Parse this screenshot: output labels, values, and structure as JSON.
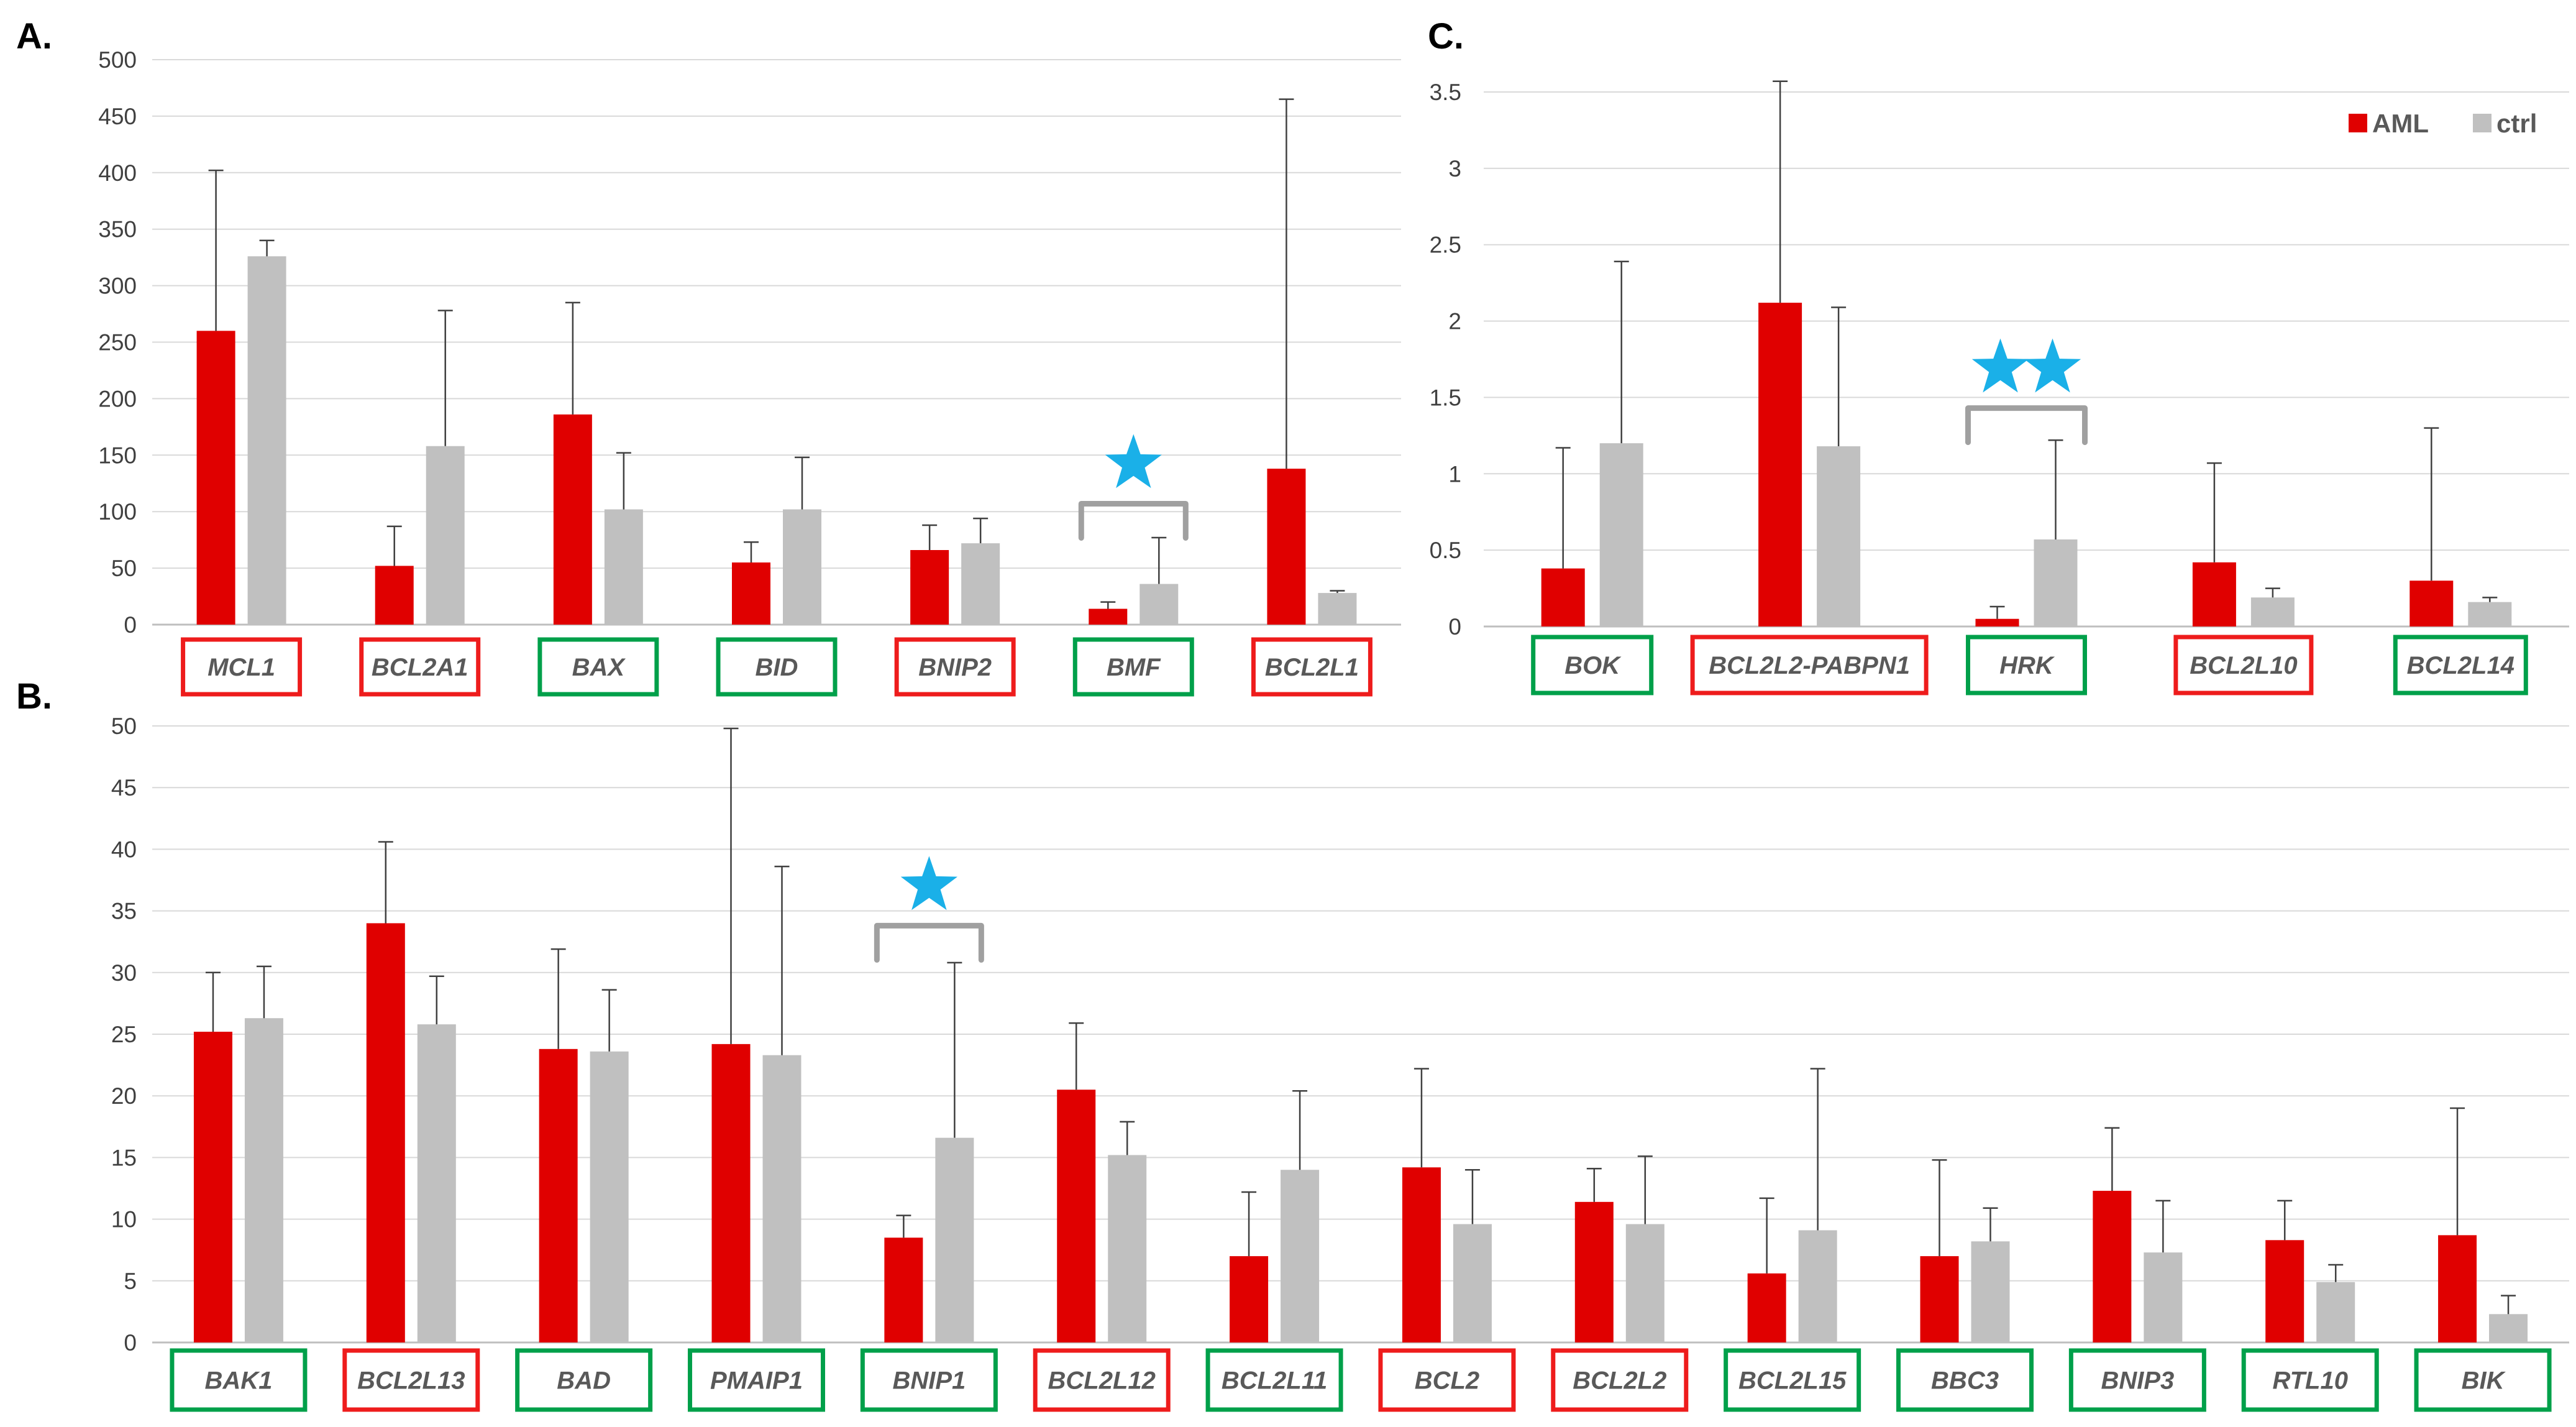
{
  "colors": {
    "aml": "#e00000",
    "ctrl": "#c0c0c0",
    "red_box": "#ee1c1c",
    "green_box": "#00a04a",
    "star": "#1ab0e8",
    "bracket": "#a0a0a0",
    "grid": "#d9d9d9",
    "error": "#404040"
  },
  "legend": [
    {
      "label": "AML",
      "color": "#e00000"
    },
    {
      "label": "ctrl",
      "color": "#c0c0c0"
    }
  ],
  "chart_data": [
    {
      "panel": "A.",
      "type": "bar",
      "ylim": [
        0,
        500
      ],
      "yticks": [
        "0",
        "50",
        "100",
        "150",
        "200",
        "250",
        "300",
        "350",
        "400",
        "450",
        "500"
      ],
      "categories": [
        "MCL1",
        "BCL2A1",
        "BAX",
        "BID",
        "BNIP2",
        "BMF",
        "BCL2L1"
      ],
      "box": [
        "red",
        "red",
        "green",
        "green",
        "red",
        "green",
        "red"
      ],
      "series": [
        {
          "name": "AML",
          "values": [
            260,
            52,
            186,
            55,
            66,
            14,
            138
          ],
          "err": [
            402,
            87,
            285,
            73,
            88,
            20,
            465
          ]
        },
        {
          "name": "ctrl",
          "values": [
            326,
            158,
            102,
            102,
            72,
            36,
            28
          ],
          "err": [
            340,
            278,
            152,
            148,
            94,
            77,
            30
          ]
        }
      ],
      "significance": [
        {
          "category": "BMF",
          "stars": "★"
        }
      ]
    },
    {
      "panel": "B.",
      "type": "bar",
      "ylim": [
        0,
        50
      ],
      "yticks": [
        "0",
        "5",
        "10",
        "15",
        "20",
        "25",
        "30",
        "35",
        "40",
        "45",
        "50"
      ],
      "categories": [
        "BAK1",
        "BCL2L13",
        "BAD",
        "PMAIP1",
        "BNIP1",
        "BCL2L12",
        "BCL2L11",
        "BCL2",
        "BCL2L2",
        "BCL2L15",
        "BBC3",
        "BNIP3",
        "RTL10",
        "BIK"
      ],
      "box": [
        "green",
        "red",
        "green",
        "green",
        "green",
        "red",
        "green",
        "red",
        "red",
        "green",
        "green",
        "green",
        "green",
        "green"
      ],
      "series": [
        {
          "name": "AML",
          "values": [
            25.2,
            34,
            23.8,
            24.2,
            8.5,
            20.5,
            7,
            14.2,
            11.4,
            5.6,
            7,
            12.3,
            8.3,
            8.7
          ],
          "err": [
            30,
            40.6,
            31.9,
            49.8,
            10.3,
            25.9,
            12.2,
            22.2,
            14.1,
            11.7,
            14.8,
            17.4,
            11.5,
            19
          ]
        },
        {
          "name": "ctrl",
          "values": [
            26.3,
            25.8,
            23.6,
            23.3,
            16.6,
            15.2,
            14,
            9.6,
            9.6,
            9.1,
            8.2,
            7.3,
            4.9,
            2.3
          ],
          "err": [
            30.5,
            29.7,
            28.6,
            38.6,
            30.8,
            17.9,
            20.4,
            14,
            15.1,
            22.2,
            10.9,
            11.5,
            6.3,
            3.8
          ]
        }
      ],
      "significance": [
        {
          "category": "BNIP1",
          "stars": "★"
        }
      ]
    },
    {
      "panel": "C.",
      "type": "bar",
      "ylim": [
        0,
        3.5
      ],
      "yticks": [
        "0",
        "0.5",
        "1",
        "1.5",
        "2",
        "2.5",
        "3",
        "3.5"
      ],
      "categories": [
        "BOK",
        "BCL2L2-PABPN1",
        "HRK",
        "BCL2L10",
        "BCL2L14"
      ],
      "box": [
        "green",
        "red",
        "green",
        "red",
        "green"
      ],
      "series": [
        {
          "name": "AML",
          "values": [
            0.38,
            2.12,
            0.05,
            0.42,
            0.3
          ],
          "err": [
            1.17,
            3.57,
            0.13,
            1.07,
            1.3
          ]
        },
        {
          "name": "ctrl",
          "values": [
            1.2,
            1.18,
            0.57,
            0.19,
            0.16
          ],
          "err": [
            2.39,
            2.09,
            1.22,
            0.25,
            0.19
          ]
        }
      ],
      "significance": [
        {
          "category": "HRK",
          "stars": "★★"
        }
      ]
    }
  ]
}
